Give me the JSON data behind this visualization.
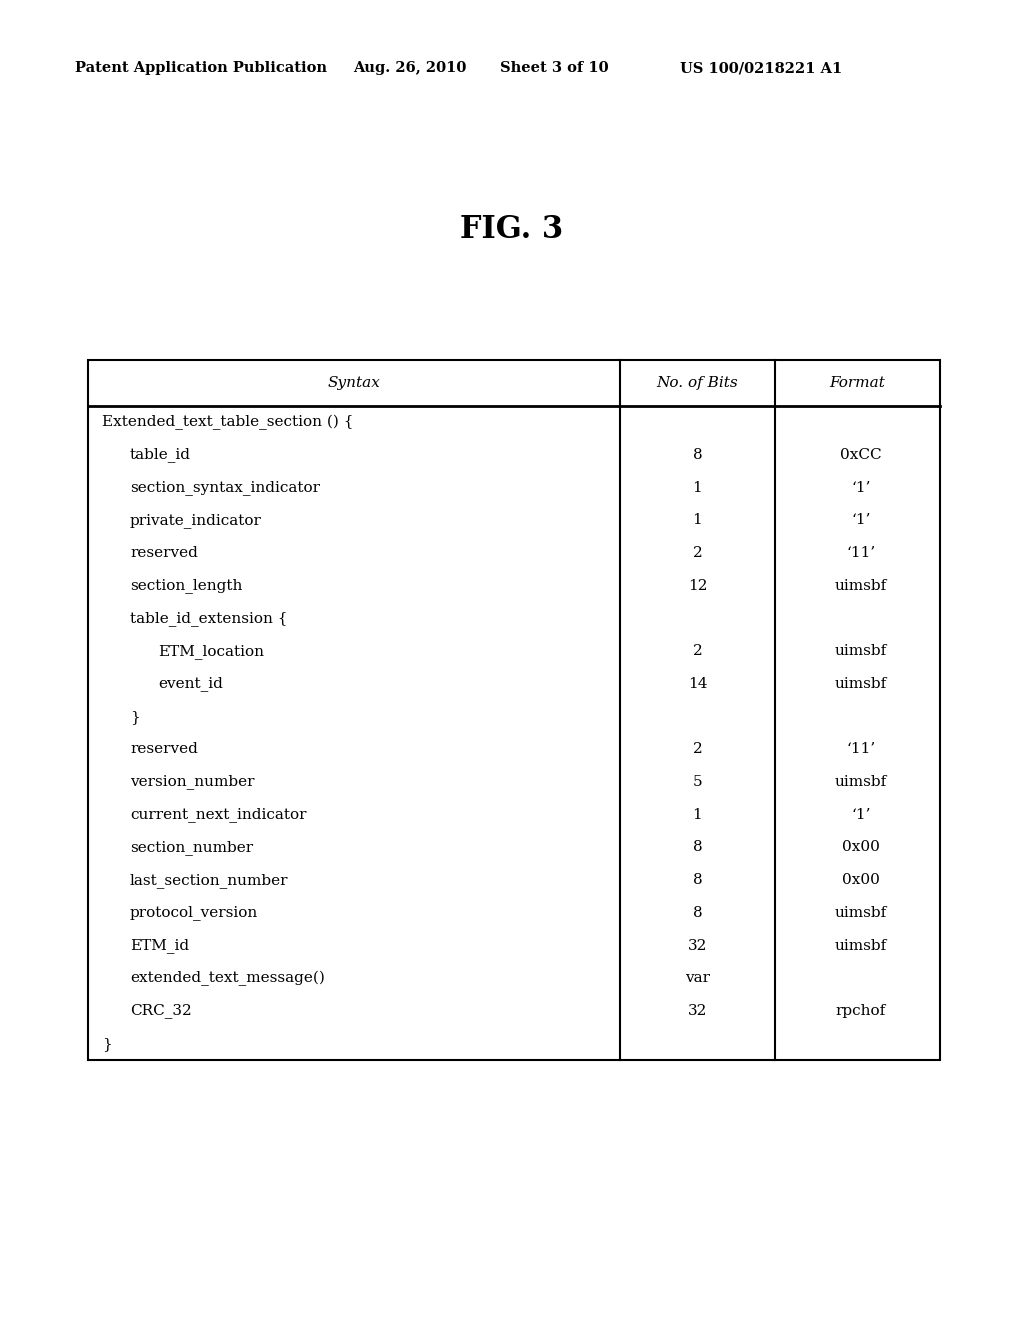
{
  "header_text": "Patent Application Publication",
  "date_text": "Aug. 26, 2010",
  "sheet_text": "Sheet 3 of 10",
  "patent_text": "US 100/0218221 A1",
  "fig_title": "FIG. 3",
  "table_headers": [
    "Syntax",
    "No. of Bits",
    "Format"
  ],
  "table_rows": [
    {
      "syntax": "Extended_text_table_section () {",
      "bits": "",
      "format": "",
      "indent": 0
    },
    {
      "syntax": "table_id",
      "bits": "8",
      "format": "0xCC",
      "indent": 1
    },
    {
      "syntax": "section_syntax_indicator",
      "bits": "1",
      "format": "‘1’",
      "indent": 1
    },
    {
      "syntax": "private_indicator",
      "bits": "1",
      "format": "‘1’",
      "indent": 1
    },
    {
      "syntax": "reserved",
      "bits": "2",
      "format": "‘11’",
      "indent": 1
    },
    {
      "syntax": "section_length",
      "bits": "12",
      "format": "uimsbf",
      "indent": 1
    },
    {
      "syntax": "table_id_extension {",
      "bits": "",
      "format": "",
      "indent": 1
    },
    {
      "syntax": "ETM_location",
      "bits": "2",
      "format": "uimsbf",
      "indent": 2
    },
    {
      "syntax": "event_id",
      "bits": "14",
      "format": "uimsbf",
      "indent": 2
    },
    {
      "syntax": "}",
      "bits": "",
      "format": "",
      "indent": 1
    },
    {
      "syntax": "reserved",
      "bits": "2",
      "format": "‘11’",
      "indent": 1
    },
    {
      "syntax": "version_number",
      "bits": "5",
      "format": "uimsbf",
      "indent": 1
    },
    {
      "syntax": "current_next_indicator",
      "bits": "1",
      "format": "‘1’",
      "indent": 1
    },
    {
      "syntax": "section_number",
      "bits": "8",
      "format": "0x00",
      "indent": 1
    },
    {
      "syntax": "last_section_number",
      "bits": "8",
      "format": "0x00",
      "indent": 1
    },
    {
      "syntax": "protocol_version",
      "bits": "8",
      "format": "uimsbf",
      "indent": 1
    },
    {
      "syntax": "ETM_id",
      "bits": "32",
      "format": "uimsbf",
      "indent": 1
    },
    {
      "syntax": "extended_text_message()",
      "bits": "var",
      "format": "",
      "indent": 1
    },
    {
      "syntax": "CRC_32",
      "bits": "32",
      "format": "rpchof",
      "indent": 1
    },
    {
      "syntax": "}",
      "bits": "",
      "format": "",
      "indent": 0
    }
  ],
  "bg_color": "#ffffff",
  "text_color": "#000000",
  "line_color": "#000000",
  "font_size_header": 11,
  "font_size_body": 11,
  "font_size_title": 22,
  "font_size_patent": 10.5
}
